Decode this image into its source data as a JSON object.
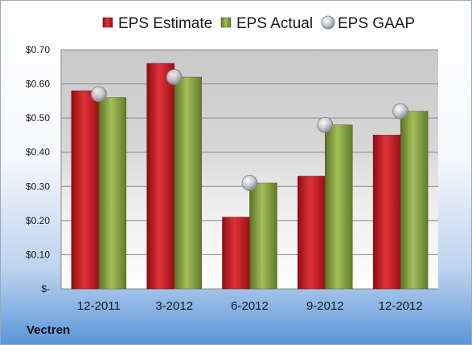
{
  "company": "Vectren",
  "colors": {
    "estimate": "#c0161c",
    "actual": "#7e9a3a",
    "gaap": "#b9bec4"
  },
  "chart_data": {
    "type": "bar",
    "categories": [
      "12-2011",
      "3-2012",
      "6-2012",
      "9-2012",
      "12-2012"
    ],
    "series": [
      {
        "name": "EPS Estimate",
        "type": "bar",
        "values": [
          0.58,
          0.66,
          0.21,
          0.33,
          0.45
        ]
      },
      {
        "name": "EPS Actual",
        "type": "bar",
        "values": [
          0.56,
          0.62,
          0.31,
          0.48,
          0.52
        ]
      },
      {
        "name": "EPS GAAP",
        "type": "scatter",
        "values": [
          0.57,
          0.62,
          0.31,
          0.48,
          0.52
        ]
      }
    ],
    "ylim": [
      0,
      0.7
    ],
    "yticks": [
      0,
      0.1,
      0.2,
      0.3,
      0.4,
      0.5,
      0.6,
      0.7
    ],
    "ytick_labels": [
      "$-",
      "$0.10",
      "$0.20",
      "$0.30",
      "$0.40",
      "$0.50",
      "$0.60",
      "$0.70"
    ],
    "grid": true,
    "legend_position": "top"
  }
}
